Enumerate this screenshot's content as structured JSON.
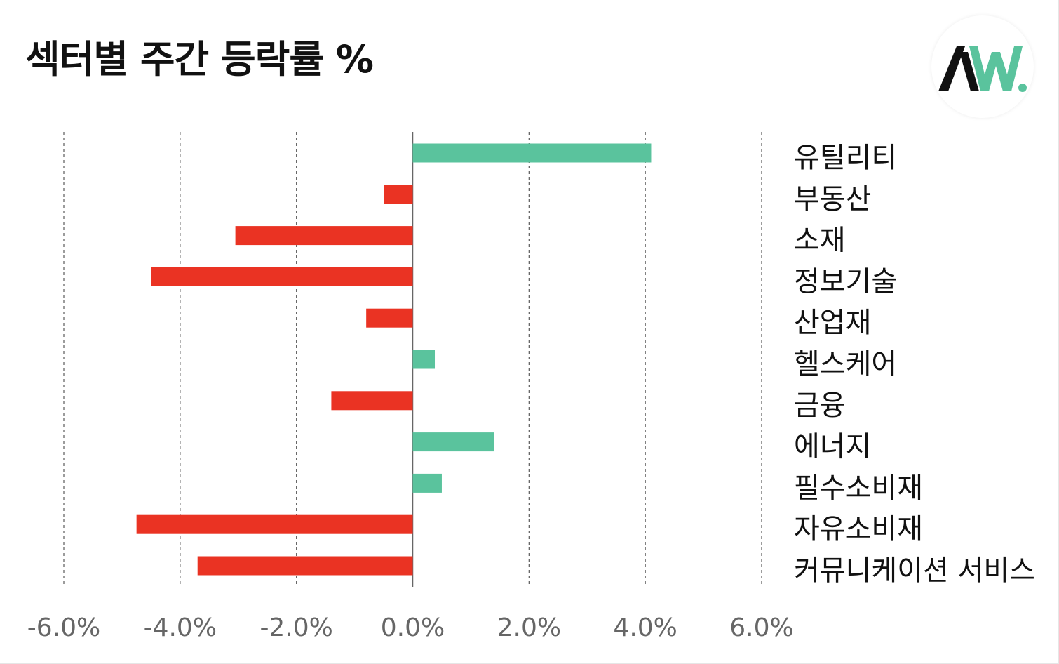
{
  "title": "섹터별 주간 등락률 %",
  "logo": {
    "icon": "aw-logo-icon",
    "text": "AW."
  },
  "colors": {
    "positive": "#5ac39d",
    "negative": "#ea3323",
    "axis": "#666666",
    "text": "#111111",
    "tick": "#666666"
  },
  "chart_data": {
    "type": "bar",
    "orientation": "horizontal",
    "categories": [
      "유틸리티",
      "부동산",
      "소재",
      "정보기술",
      "산업재",
      "헬스케어",
      "금융",
      "에너지",
      "필수소비재",
      "자유소비재",
      "커뮤니케이션 서비스"
    ],
    "values": [
      4.1,
      -0.5,
      -3.05,
      -4.5,
      -0.8,
      0.38,
      -1.4,
      1.4,
      0.5,
      -4.75,
      -3.7
    ],
    "xlim": [
      -6.0,
      6.0
    ],
    "xticks": [
      -6.0,
      -4.0,
      -2.0,
      0.0,
      2.0,
      4.0,
      6.0
    ],
    "xtick_labels": [
      "-6.0%",
      "-4.0%",
      "-2.0%",
      "0.0%",
      "2.0%",
      "4.0%",
      "6.0%"
    ],
    "grid": "vertical dashed",
    "category_labels_position": "right"
  }
}
